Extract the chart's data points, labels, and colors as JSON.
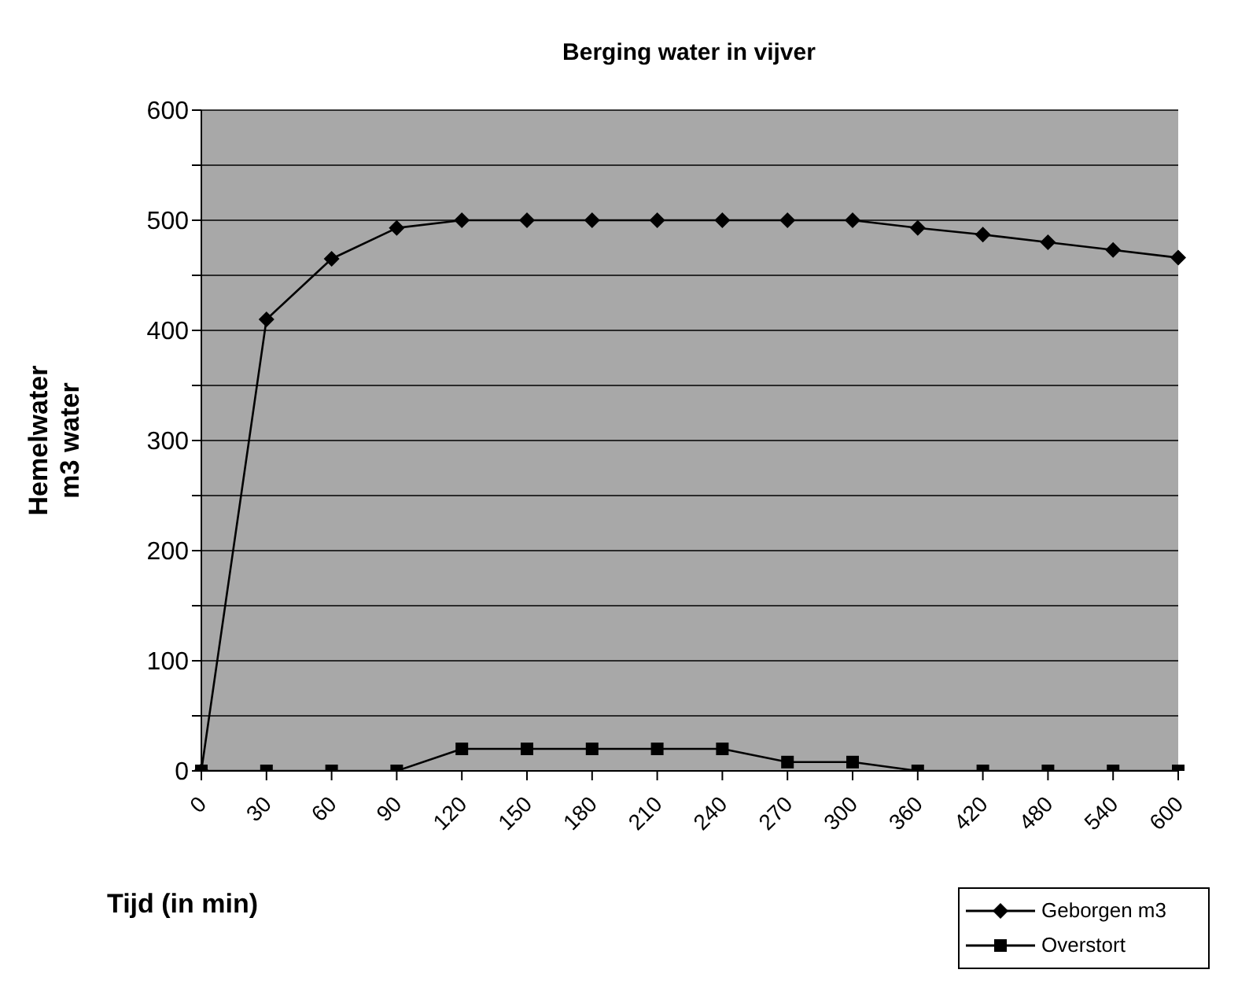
{
  "chart_data": {
    "type": "line",
    "title": "Berging water in vijver",
    "xlabel": "Tijd (in min)",
    "ylabel": "Hemelwater m3 water",
    "categories": [
      "0",
      "30",
      "60",
      "90",
      "120",
      "150",
      "180",
      "210",
      "240",
      "270",
      "300",
      "360",
      "420",
      "480",
      "540",
      "600"
    ],
    "series": [
      {
        "name": "Geborgen m3",
        "color": "#000000",
        "marker": "diamond",
        "values": [
          0,
          410,
          465,
          493,
          500,
          500,
          500,
          500,
          500,
          500,
          500,
          493,
          487,
          480,
          473,
          466
        ]
      },
      {
        "name": "Overstort",
        "color": "#000000",
        "marker": "square",
        "values": [
          0,
          0,
          0,
          0,
          20,
          20,
          20,
          20,
          20,
          8,
          8,
          0,
          0,
          0,
          0,
          0
        ]
      }
    ],
    "ylim": [
      0,
      600
    ],
    "yticks": [
      0,
      {
        "value": 50,
        "label": null
      },
      100,
      {
        "value": 150,
        "label": null
      },
      200,
      {
        "value": 250,
        "label": null
      },
      300,
      {
        "value": 350,
        "label": null
      },
      400,
      {
        "value": 450,
        "label": null
      },
      500,
      {
        "value": 550,
        "label": null
      },
      600
    ],
    "grid": "y",
    "legend": "bottom right",
    "line_style": "solid"
  }
}
